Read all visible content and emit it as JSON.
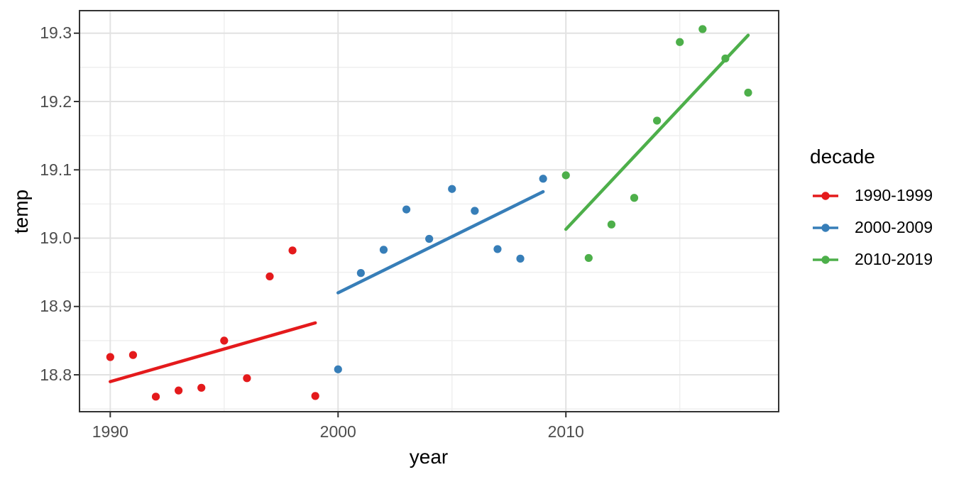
{
  "theme": {
    "background": "#FFFFFF",
    "panel_border_color": "#333333",
    "grid_major_color": "#E2E2E2",
    "grid_minor_color": "#EFEFEF",
    "tick_mark_color": "#333333",
    "axis_text_color": "#4D4D4D",
    "axis_title_color": "#000000"
  },
  "axis_titles": {
    "x": "year",
    "y": "temp"
  },
  "chart_data": {
    "type": "scatter",
    "title": "",
    "xlabel": "year",
    "ylabel": "temp",
    "xlim": [
      1988.65,
      2019.34
    ],
    "ylim": [
      18.746,
      19.333
    ],
    "grid": "major+minor",
    "x_ticks": {
      "values": [
        1990,
        2000,
        2010
      ],
      "labels": [
        "1990",
        "2000",
        "2010"
      ]
    },
    "y_ticks": {
      "values": [
        18.8,
        18.9,
        19.0,
        19.1,
        19.2,
        19.3
      ],
      "labels": [
        "18.8",
        "18.9",
        "19.0",
        "19.1",
        "19.2",
        "19.3"
      ]
    },
    "x_minor": [
      1995,
      2005,
      2015
    ],
    "y_minor": [
      18.75,
      18.85,
      18.95,
      19.05,
      19.15,
      19.25
    ],
    "legend": {
      "title": "decade",
      "position": "right"
    },
    "series": [
      {
        "name": "1990-1999",
        "color": "#E41A1C",
        "points": [
          [
            1990,
            18.826
          ],
          [
            1991,
            18.829
          ],
          [
            1992,
            18.768
          ],
          [
            1993,
            18.777
          ],
          [
            1994,
            18.781
          ],
          [
            1995,
            18.85
          ],
          [
            1996,
            18.795
          ],
          [
            1997,
            18.944
          ],
          [
            1998,
            18.982
          ],
          [
            1999,
            18.769
          ]
        ],
        "trend": [
          [
            1990,
            18.79
          ],
          [
            1999,
            18.876
          ]
        ]
      },
      {
        "name": "2000-2009",
        "color": "#377EB8",
        "points": [
          [
            2000,
            18.808
          ],
          [
            2001,
            18.949
          ],
          [
            2002,
            18.983
          ],
          [
            2003,
            19.042
          ],
          [
            2004,
            18.999
          ],
          [
            2005,
            19.072
          ],
          [
            2006,
            19.04
          ],
          [
            2007,
            18.984
          ],
          [
            2008,
            18.97
          ],
          [
            2009,
            19.087
          ]
        ],
        "trend": [
          [
            2000,
            18.92
          ],
          [
            2009,
            19.068
          ]
        ]
      },
      {
        "name": "2010-2019",
        "color": "#4DAF4A",
        "points": [
          [
            2010,
            19.092
          ],
          [
            2011,
            18.971
          ],
          [
            2012,
            19.02
          ],
          [
            2013,
            19.059
          ],
          [
            2014,
            19.172
          ],
          [
            2015,
            19.287
          ],
          [
            2016,
            19.306
          ],
          [
            2017,
            19.263
          ],
          [
            2018,
            19.213
          ]
        ],
        "trend": [
          [
            2010,
            19.013
          ],
          [
            2018,
            19.297
          ]
        ]
      }
    ]
  }
}
